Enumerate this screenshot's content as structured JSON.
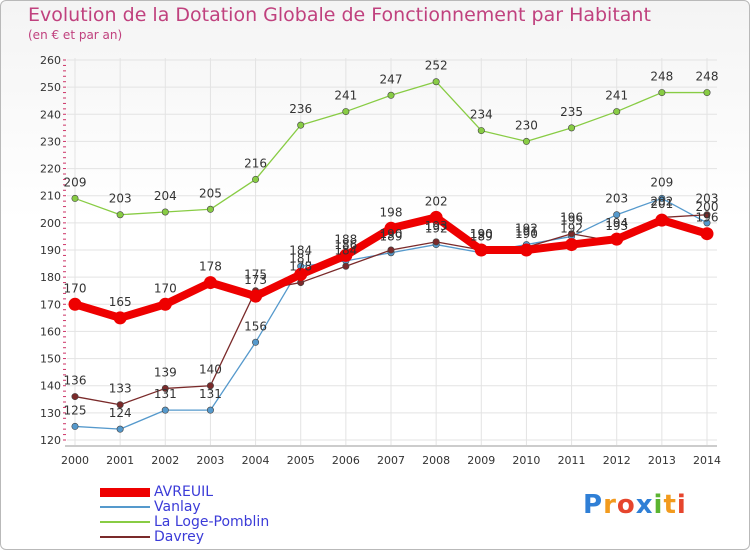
{
  "chart_data": {
    "type": "line",
    "title": "Evolution de la Dotation Globale de Fonctionnement par Habitant",
    "subtitle": "(en € et par an)",
    "x": [
      "2000",
      "2001",
      "2002",
      "2003",
      "2004",
      "2005",
      "2006",
      "2007",
      "2008",
      "2009",
      "2010",
      "2011",
      "2012",
      "2013",
      "2014"
    ],
    "ylim": [
      120,
      260
    ],
    "yticks": [
      120,
      130,
      140,
      150,
      160,
      170,
      180,
      190,
      200,
      210,
      220,
      230,
      240,
      250,
      260
    ],
    "grid": true,
    "series": [
      {
        "name": "AVREUIL",
        "color": "#ee0000",
        "values": [
          170,
          165,
          170,
          178,
          173,
          181,
          188,
          198,
          202,
          190,
          190,
          192,
          194,
          201,
          196
        ]
      },
      {
        "name": "Vanlay",
        "color": "#5599cc",
        "values": [
          125,
          124,
          131,
          131,
          156,
          184,
          186,
          189,
          192,
          189,
          192,
          195,
          203,
          209,
          200
        ]
      },
      {
        "name": "La Loge-Pomblin",
        "color": "#88cc44",
        "values": [
          209,
          203,
          204,
          205,
          216,
          236,
          241,
          247,
          252,
          234,
          230,
          235,
          241,
          248,
          248
        ]
      },
      {
        "name": "Davrey",
        "color": "#7a2a2a",
        "values": [
          136,
          133,
          139,
          140,
          175,
          178,
          184,
          190,
          193,
          190,
          191,
          196,
          193,
          202,
          203
        ]
      }
    ]
  },
  "logo": {
    "letters": [
      "P",
      "r",
      "o",
      "x",
      "i",
      "t",
      "i"
    ],
    "colors": [
      "#2f7fd6",
      "#f29b1e",
      "#e6452d",
      "#2f7fd6",
      "#5bb431",
      "#f29b1e",
      "#e6452d"
    ]
  }
}
